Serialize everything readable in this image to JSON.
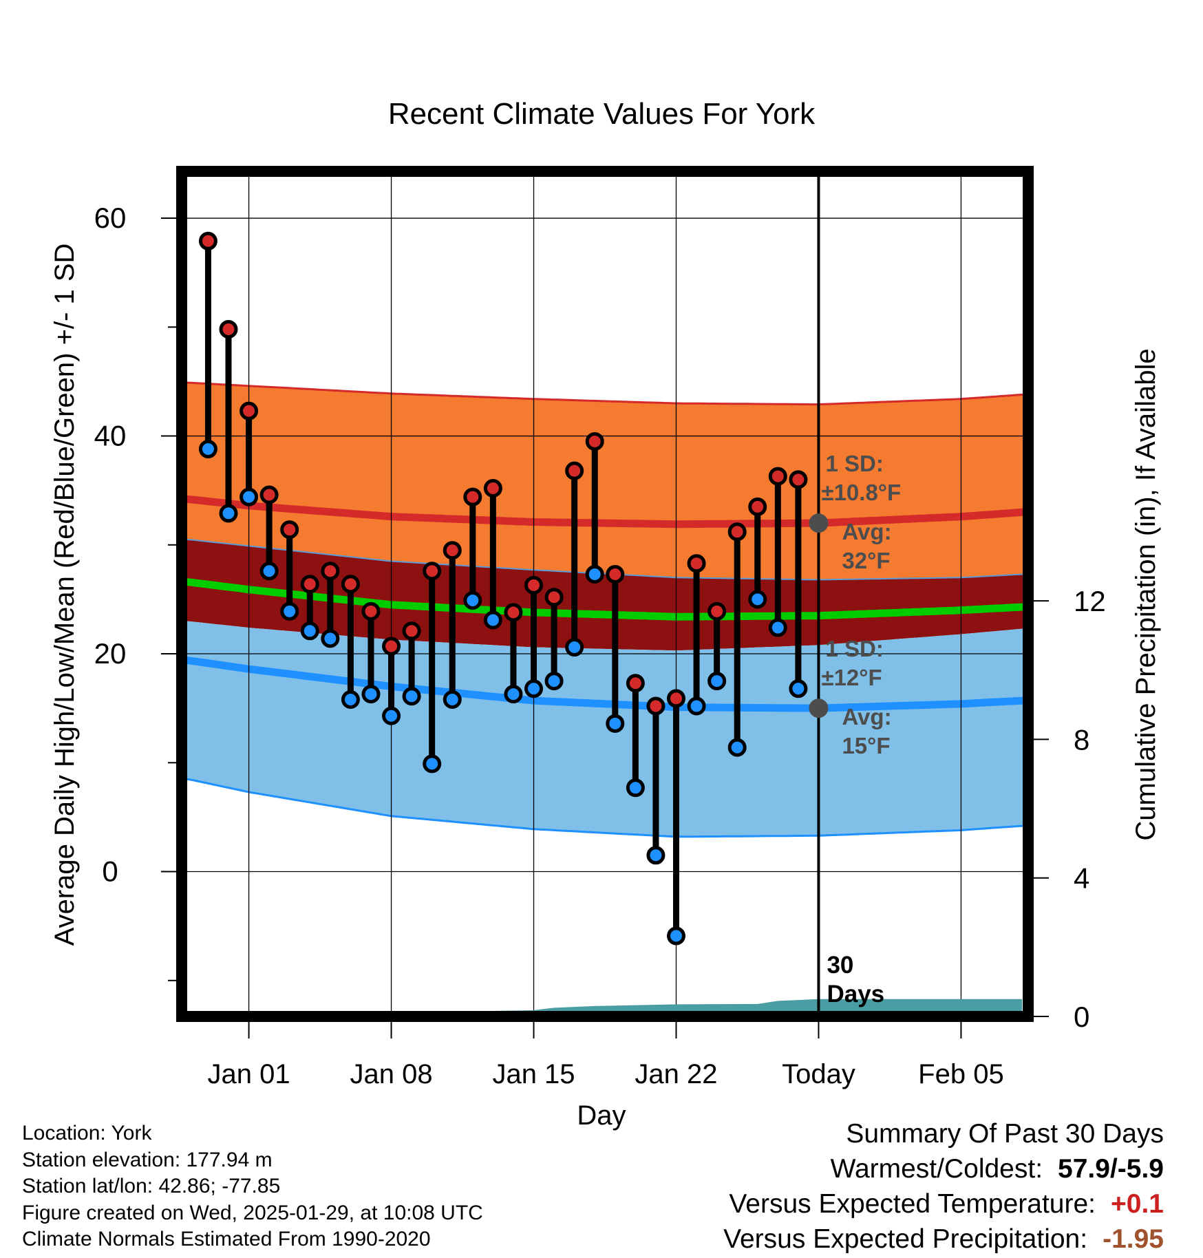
{
  "chart_data": {
    "type": "climate-range",
    "title": "Recent Climate Values For York",
    "xlabel": "Day",
    "ylabel": "Average Daily High/Low/Mean (Red/Blue/Green) +/- 1 SD",
    "y2label": "Cumulative Precipitation (in), If Available",
    "ylim": [
      -13.3,
      64.3
    ],
    "y_ticks": [
      0,
      20,
      40,
      60
    ],
    "y_minor_ticks": [
      -10,
      10,
      30,
      50
    ],
    "y2lim": [
      0,
      24.4
    ],
    "y2_ticks": [
      0,
      4,
      8,
      12
    ],
    "xlim": [
      -3.3,
      38.3
    ],
    "x_ticks": [
      {
        "x": 0,
        "label": "Jan 01"
      },
      {
        "x": 7,
        "label": "Jan 08"
      },
      {
        "x": 14,
        "label": "Jan 15"
      },
      {
        "x": 21,
        "label": "Jan 22"
      },
      {
        "x": 28,
        "label": "Today"
      },
      {
        "x": 35,
        "label": "Feb 05"
      }
    ],
    "today_x": 28,
    "today_label_lines": [
      "30",
      "Days"
    ],
    "days_x": [
      -2,
      -1,
      0,
      1,
      2,
      3,
      4,
      5,
      6,
      7,
      8,
      9,
      10,
      11,
      12,
      13,
      14,
      15,
      16,
      17,
      18,
      19,
      20,
      21,
      22,
      23,
      24,
      25,
      26,
      27
    ],
    "highs": [
      57.9,
      49.8,
      42.3,
      34.6,
      31.4,
      26.4,
      27.6,
      26.4,
      23.9,
      20.7,
      22.1,
      27.6,
      29.5,
      34.4,
      35.2,
      23.8,
      26.3,
      25.2,
      36.8,
      39.5,
      27.3,
      17.3,
      15.2,
      15.9,
      28.3,
      23.9,
      31.2,
      33.5,
      36.3,
      36.0
    ],
    "lows": [
      38.8,
      32.9,
      34.4,
      27.6,
      23.9,
      22.1,
      21.4,
      15.8,
      16.3,
      14.3,
      16.1,
      9.9,
      15.8,
      24.9,
      23.1,
      16.3,
      16.8,
      17.5,
      20.6,
      27.3,
      13.6,
      7.7,
      1.5,
      -5.9,
      15.2,
      17.5,
      11.4,
      25.0,
      22.4,
      16.8
    ],
    "normals_x": [
      -3,
      0,
      7,
      14,
      21,
      28,
      35,
      38
    ],
    "normal_high": [
      34.2,
      33.6,
      32.6,
      32.1,
      31.9,
      32.0,
      32.6,
      33.0
    ],
    "normal_high_upper": [
      44.9,
      44.6,
      43.9,
      43.4,
      43.0,
      42.9,
      43.4,
      43.8
    ],
    "normal_high_lower": [
      30.5,
      29.9,
      28.5,
      27.7,
      27.0,
      26.8,
      27.0,
      27.3
    ],
    "normal_mean": [
      26.6,
      25.9,
      24.5,
      23.8,
      23.4,
      23.5,
      24.0,
      24.3
    ],
    "normal_low": [
      19.4,
      18.6,
      17.0,
      15.7,
      15.1,
      15.0,
      15.4,
      15.7
    ],
    "normal_low_upper": [
      23.0,
      22.4,
      21.3,
      20.6,
      20.3,
      20.8,
      21.8,
      22.3
    ],
    "normal_low_lower": [
      8.5,
      7.3,
      5.1,
      3.9,
      3.2,
      3.3,
      3.8,
      4.2
    ],
    "precip_x": [
      -3,
      9,
      10,
      11,
      14,
      15,
      17,
      21,
      25,
      26,
      28,
      38
    ],
    "precip_cum": [
      0,
      0,
      0.1,
      0.15,
      0.18,
      0.25,
      0.3,
      0.35,
      0.36,
      0.45,
      0.5,
      0.5
    ],
    "annotations": [
      {
        "x": 28,
        "y": 32,
        "lines": [
          "1 SD:",
          "±10.8°F",
          "Avg:",
          "32°F"
        ]
      },
      {
        "x": 28,
        "y": 15,
        "lines": [
          "1 SD:",
          "±12°F",
          "Avg:",
          "15°F"
        ]
      }
    ],
    "colors": {
      "high_band": "#f47b30",
      "high_band_edge": "#d42a2a",
      "high_line": "#d42a2a",
      "mid_band": "#8e1111",
      "mean_line": "#00cc00",
      "low_band": "#80c0e8",
      "low_band_edge": "#1e90ff",
      "low_line": "#1e90ff",
      "high_marker": "#d42a2a",
      "low_marker": "#1e90ff",
      "precip": "#4a9da3",
      "annotation": "#4d4d4d"
    }
  },
  "info": {
    "location": "Location: York",
    "elevation": "Station elevation: 177.94 m",
    "latlon": "Station lat/lon: 42.86; -77.85",
    "created": "Figure created on Wed, 2025-01-29, at 10:08 UTC",
    "normals": "Climate Normals Estimated From 1990-2020"
  },
  "summary": {
    "title": "Summary Of Past 30 Days",
    "warm_cold_label": "Warmest/Coldest:",
    "warm_cold_value": "57.9/-5.9",
    "temp_label": "Versus Expected Temperature:",
    "temp_value": "+0.1",
    "temp_color": "#cc2020",
    "precip_label": "Versus Expected Precipitation:",
    "precip_value": "-1.95",
    "precip_color": "#a0522d"
  }
}
